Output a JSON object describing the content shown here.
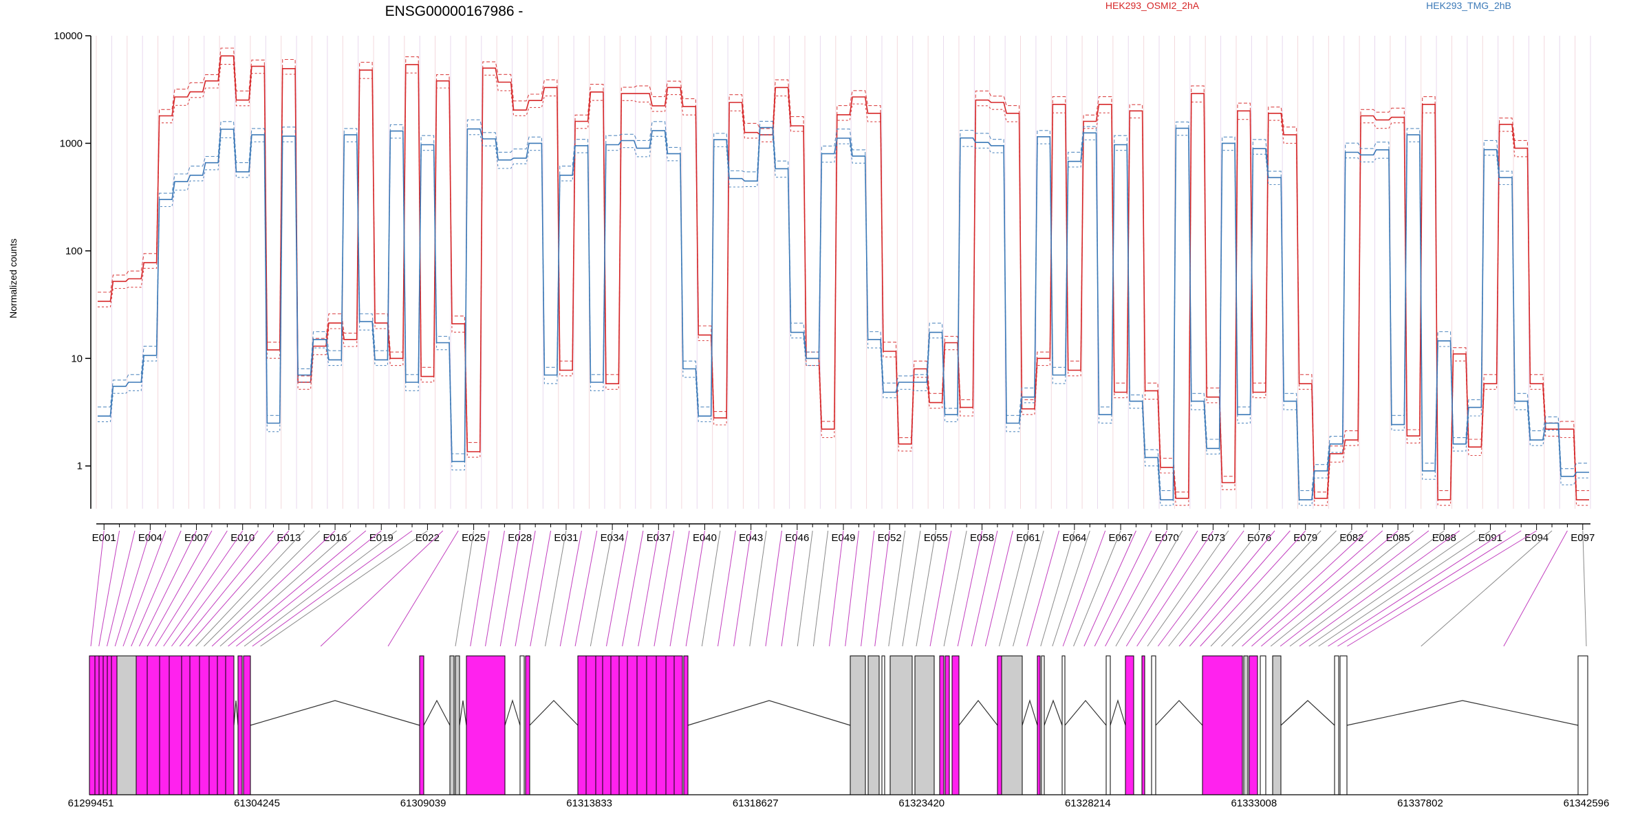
{
  "chart_data": {
    "type": "line",
    "title": "ENSG00000167986 -",
    "ylabel": "Normalized counts",
    "yscale": "log",
    "ylim": [
      0.4,
      10000
    ],
    "yticks": [
      "1",
      "10",
      "100",
      "1000",
      "10000"
    ],
    "xticks": [
      "E001",
      "E004",
      "E007",
      "E010",
      "E013",
      "E016",
      "E019",
      "E022",
      "E025",
      "E028",
      "E031",
      "E034",
      "E037",
      "E040",
      "E043",
      "E046",
      "E049",
      "E052",
      "E055",
      "E058",
      "E061",
      "E064",
      "E067",
      "E070",
      "E073",
      "E076",
      "E079",
      "E082",
      "E085",
      "E088",
      "E091",
      "E094",
      "E097"
    ],
    "bins": [
      "E001",
      "E002",
      "E003",
      "E004",
      "E005",
      "E006",
      "E007",
      "E008",
      "E009",
      "E010",
      "E011",
      "E012",
      "E013",
      "E014",
      "E015",
      "E016",
      "E017",
      "E018",
      "E019",
      "E020",
      "E021",
      "E022",
      "E023",
      "E024",
      "E025",
      "E026",
      "E027",
      "E028",
      "E029",
      "E030",
      "E031",
      "E032",
      "E033",
      "E034",
      "E035",
      "E036",
      "E037",
      "E038",
      "E039",
      "E040",
      "E041",
      "E042",
      "E043",
      "E044",
      "E045",
      "E046",
      "E047",
      "E048",
      "E049",
      "E050",
      "E051",
      "E052",
      "E053",
      "E054",
      "E055",
      "E056",
      "E057",
      "E058",
      "E059",
      "E060",
      "E061",
      "E062",
      "E063",
      "E064",
      "E065",
      "E066",
      "E067",
      "E068",
      "E069",
      "E070",
      "E071",
      "E072",
      "E073",
      "E074",
      "E075",
      "E076",
      "E077",
      "E078",
      "E079",
      "E080",
      "E081",
      "E082",
      "E083",
      "E084",
      "E085",
      "E086",
      "E087",
      "E088",
      "E089",
      "E090",
      "E091",
      "E092",
      "E093",
      "E094",
      "E095",
      "E096",
      "E097"
    ],
    "series": [
      {
        "name": "HEK293_OSMI2_2hA",
        "color": "#d62728",
        "values": [
          35,
          52,
          55,
          80,
          1800,
          2700,
          3100,
          3800,
          6500,
          2600,
          5200,
          12,
          5100,
          6,
          13,
          22,
          15,
          4800,
          22,
          10,
          5400,
          7,
          3800,
          21,
          1.4,
          5000,
          3700,
          2100,
          2500,
          3300,
          8,
          1600,
          3000,
          6,
          2900,
          2900,
          2300,
          3300,
          2200,
          17,
          2.8,
          2400,
          1300,
          1200,
          3300,
          1500,
          10,
          2.2,
          1900,
          2700,
          1900,
          12,
          1.6,
          8,
          4,
          14,
          3.5,
          2600,
          2400,
          1900,
          3.5,
          10,
          2300,
          8,
          1600,
          2300,
          5,
          2000,
          5,
          1,
          0.5,
          2900,
          4.5,
          0.7,
          2000,
          5,
          1900,
          1200,
          6,
          0.5,
          1.3,
          1.8,
          1800,
          1650,
          1800,
          1.9,
          2300,
          0.5,
          11,
          1.5,
          6,
          1500,
          900,
          6,
          2.2,
          2.2,
          0.5
        ]
      },
      {
        "name": "HEK293_TMG_2hB",
        "color": "#3b79b7",
        "values": [
          3,
          5.5,
          6,
          11,
          300,
          440,
          520,
          660,
          1350,
          560,
          1200,
          2.5,
          1200,
          7,
          15,
          10,
          1200,
          22,
          10,
          1300,
          6,
          1000,
          14,
          1.1,
          1400,
          1100,
          700,
          750,
          1000,
          7,
          520,
          950,
          6,
          1000,
          1060,
          900,
          1350,
          800,
          8,
          3,
          1080,
          470,
          460,
          1400,
          580,
          18,
          10,
          800,
          1150,
          760,
          15,
          5,
          6,
          6,
          18,
          3,
          1120,
          1050,
          950,
          2.5,
          4.5,
          1150,
          7,
          700,
          1250,
          3,
          1000,
          4,
          1.2,
          0.5,
          1380,
          4,
          1.5,
          1000,
          3,
          920,
          480,
          4,
          0.5,
          0.9,
          1.6,
          850,
          780,
          870,
          2.5,
          1200,
          0.9,
          15,
          1.6,
          3.5,
          900,
          480,
          4,
          1.8,
          2.5,
          0.8,
          0.9
        ]
      }
    ],
    "legend": [
      "HEK293_OSMI2_2hA",
      "HEK293_TMG_2hB"
    ],
    "gene_model": {
      "coordinate_labels": [
        "61299451",
        "61304245",
        "61309039",
        "61313833",
        "61318627",
        "61323420",
        "61328214",
        "61333008",
        "61337802",
        "61342596"
      ],
      "exon_colors": {
        "significant": "#ff22ee",
        "neutral": "#cccccc",
        "untested": "#ffffff"
      }
    }
  }
}
